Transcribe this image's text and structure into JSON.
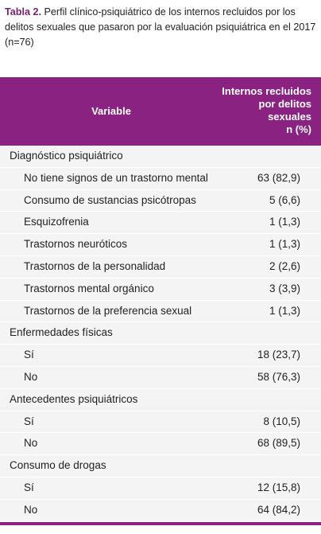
{
  "caption": {
    "label": "Tabla 2.",
    "text": "Perfil clínico-psiquiátrico de los internos recluidos por los delitos sexuales que pasaron por la evaluación psiquiátrica en el 2017 (n=76)"
  },
  "table": {
    "header": {
      "variable": "Variable",
      "value_lines": [
        "Internos recluidos",
        "por delitos",
        "sexuales",
        "n (%)"
      ]
    },
    "sections": [
      {
        "title": "Diagnóstico psiquiátrico",
        "rows": [
          {
            "label": "No tiene signos de un trastorno mental",
            "value": "63 (82,9)"
          },
          {
            "label": "Consumo de sustancias psicótropas",
            "value": "5 (6,6)"
          },
          {
            "label": "Esquizofrenia",
            "value": "1 (1,3)"
          },
          {
            "label": "Trastornos neuróticos",
            "value": "1 (1,3)"
          },
          {
            "label": "Trastornos de la personalidad",
            "value": "2 (2,6)"
          },
          {
            "label": "Trastornos mental orgánico",
            "value": "3 (3,9)"
          },
          {
            "label": "Trastornos de la preferencia sexual",
            "value": "1 (1,3)"
          }
        ]
      },
      {
        "title": "Enfermedades físicas",
        "rows": [
          {
            "label": "Sí",
            "value": "18 (23,7)"
          },
          {
            "label": "No",
            "value": "58 (76,3)"
          }
        ]
      },
      {
        "title": "Antecedentes psiquiátricos",
        "rows": [
          {
            "label": "Sí",
            "value": "8 (10,5)"
          },
          {
            "label": "No",
            "value": "68 (89,5)"
          }
        ]
      },
      {
        "title": "Consumo de drogas",
        "rows": [
          {
            "label": "Sí",
            "value": "12 (15,8)"
          },
          {
            "label": "No",
            "value": "64 (84,2)"
          }
        ]
      }
    ]
  }
}
